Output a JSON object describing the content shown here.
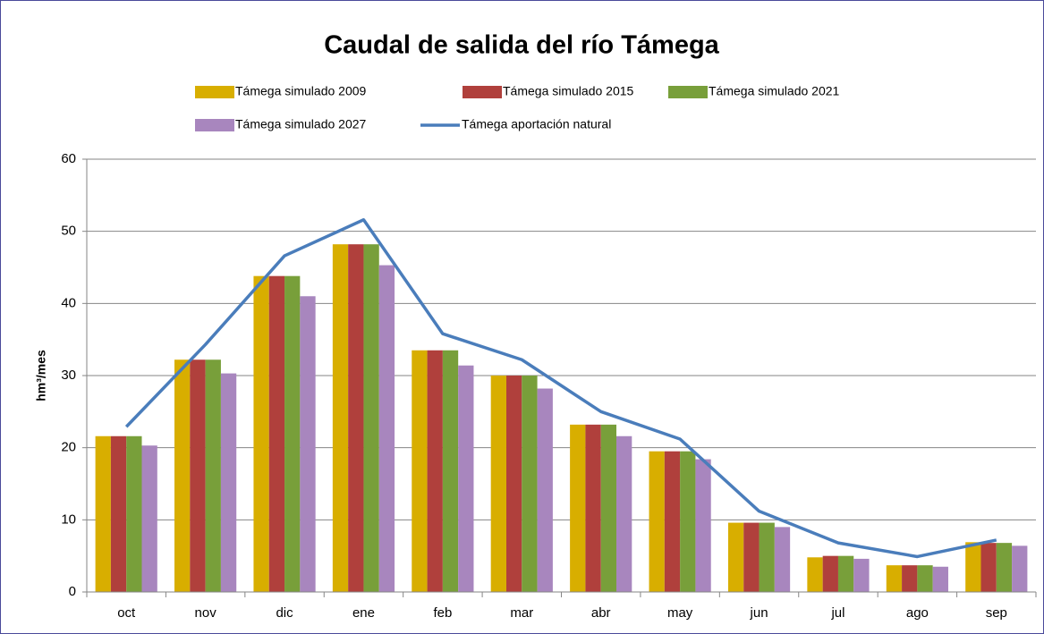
{
  "chart_data": {
    "type": "bar",
    "title": "Caudal de salida del río Támega",
    "y_label": "hm³/mes",
    "categories": [
      "oct",
      "nov",
      "dic",
      "ene",
      "feb",
      "mar",
      "abr",
      "may",
      "jun",
      "jul",
      "ago",
      "sep"
    ],
    "series": [
      {
        "name": "Támega simulado 2009",
        "color": "#d8ae00",
        "values": [
          21.6,
          32.2,
          43.8,
          48.2,
          33.5,
          30.0,
          23.2,
          19.5,
          9.6,
          4.8,
          3.7,
          6.9
        ]
      },
      {
        "name": "Támega simulado 2015",
        "color": "#b0403c",
        "values": [
          21.6,
          32.2,
          43.8,
          48.2,
          33.5,
          30.0,
          23.2,
          19.5,
          9.6,
          5.0,
          3.7,
          6.8
        ]
      },
      {
        "name": "Támega simulado 2021",
        "color": "#789f3a",
        "values": [
          21.6,
          32.2,
          43.8,
          48.2,
          33.5,
          30.0,
          23.2,
          19.5,
          9.6,
          5.0,
          3.7,
          6.8
        ]
      },
      {
        "name": "Támega simulado 2027",
        "color": "#a886be",
        "values": [
          20.3,
          30.3,
          41.0,
          45.3,
          31.4,
          28.2,
          21.6,
          18.4,
          9.0,
          4.6,
          3.5,
          6.4
        ]
      },
      {
        "name": "Támega aportación natural",
        "color": "#4a7dbb",
        "type": "line",
        "values": [
          22.9,
          34.3,
          46.6,
          51.6,
          35.8,
          32.2,
          25.0,
          21.2,
          11.2,
          6.8,
          4.9,
          7.2
        ]
      }
    ],
    "ylim": [
      0,
      60
    ],
    "yticks": [
      0,
      10,
      20,
      30,
      40,
      50,
      60
    ],
    "grid": true
  }
}
